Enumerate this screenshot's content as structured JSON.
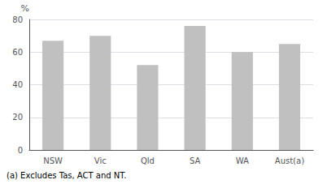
{
  "chart_data": {
    "type": "bar",
    "categories": [
      "NSW",
      "Vic",
      "Qld",
      "SA",
      "WA",
      "Aust(a)"
    ],
    "values": [
      67,
      70,
      52,
      76,
      60,
      65
    ],
    "color": "#c0c0c0",
    "ylabel": "%",
    "footnote": "(a) Excludes Tas, ACT and NT.",
    "ylim": [
      0,
      80
    ],
    "yticks": [
      0,
      20,
      40,
      60,
      80
    ],
    "grid": true
  }
}
